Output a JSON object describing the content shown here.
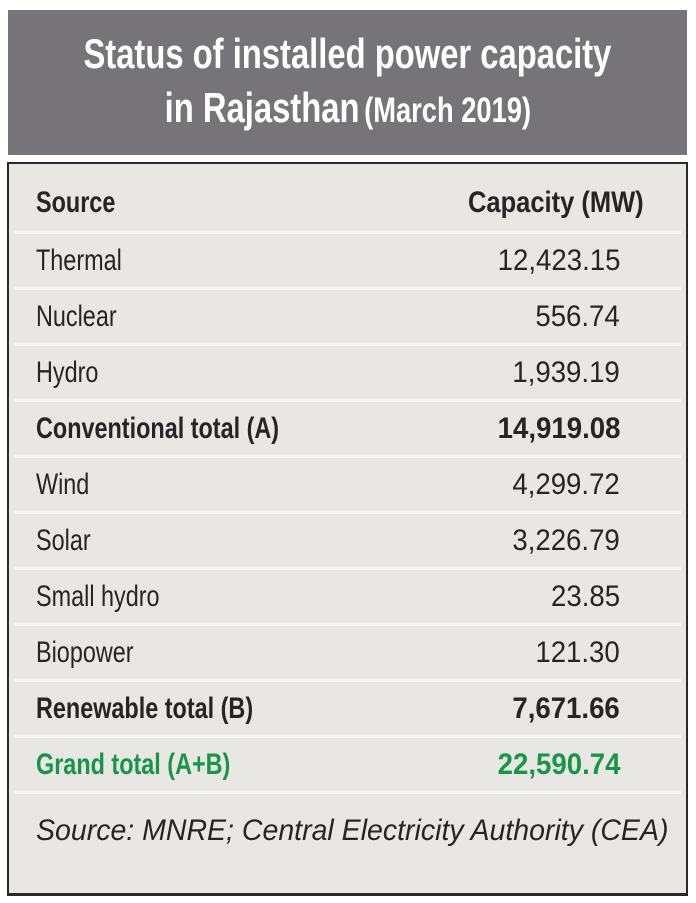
{
  "header": {
    "title_line1": "Status of installed power capacity",
    "title_line2_main": "in Rajasthan",
    "title_line2_note": "(March 2019)"
  },
  "table": {
    "columns": {
      "source": "Source",
      "capacity": "Capacity (MW)"
    },
    "rows": [
      {
        "label": "Thermal",
        "value": "12,423.15"
      },
      {
        "label": "Nuclear",
        "value": "556.74"
      },
      {
        "label": "Hydro",
        "value": "1,939.19"
      },
      {
        "label": "Conventional total (A)",
        "value": "14,919.08"
      },
      {
        "label": "Wind",
        "value": "4,299.72"
      },
      {
        "label": "Solar",
        "value": "3,226.79"
      },
      {
        "label": "Small hydro",
        "value": "23.85"
      },
      {
        "label": "Biopower",
        "value": "121.30"
      },
      {
        "label": "Renewable total (B)",
        "value": "7,671.66"
      },
      {
        "label": "Grand total (A+B)",
        "value": "22,590.74"
      }
    ]
  },
  "footer": {
    "source_note": "Source: MNRE; Central Electricity Authority (CEA)"
  },
  "colors": {
    "banner_gray": "#767479",
    "body_background": "#e8e7e4",
    "separator": "#f8f7f5",
    "text": "#272425",
    "accent_green": "#189546",
    "border": "#2b2829"
  },
  "chart_data": {
    "type": "table",
    "title": "Status of installed power capacity in Rajasthan (March 2019)",
    "columns": [
      "Source",
      "Capacity (MW)"
    ],
    "rows": [
      [
        "Thermal",
        12423.15
      ],
      [
        "Nuclear",
        556.74
      ],
      [
        "Hydro",
        1939.19
      ],
      [
        "Conventional total (A)",
        14919.08
      ],
      [
        "Wind",
        4299.72
      ],
      [
        "Solar",
        3226.79
      ],
      [
        "Small hydro",
        23.85
      ],
      [
        "Biopower",
        121.3
      ],
      [
        "Renewable total (B)",
        7671.66
      ],
      [
        "Grand total (A+B)",
        22590.74
      ]
    ],
    "source": "MNRE; Central Electricity Authority (CEA)"
  }
}
